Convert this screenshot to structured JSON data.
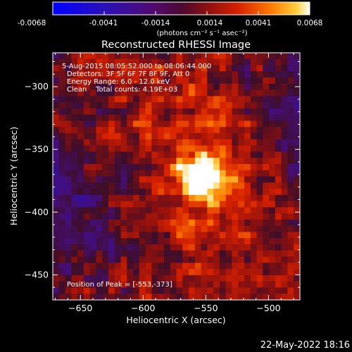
{
  "colorbar": {
    "ticks": [
      "-0.0068",
      "-0.0041",
      "-0.0014",
      "0.0014",
      "0.0041",
      "0.0068"
    ],
    "units": "(photons cm⁻² s⁻¹ asec⁻²)"
  },
  "title": "Reconstructed RHESSI Image",
  "info": {
    "time": "5-Aug-2015 08:05:52.000 to 08:06:44.000",
    "detectors": "Detectors: 3F 5F 6F 7F 8F 9F, Att 0",
    "energy": "Energy Range: 6.0 - 12.0 keV",
    "clean": "Clean    Total counts: 4.19E+03"
  },
  "peak_label": "Position of Peak = [-553,-373]",
  "footer_date": "22-May-2022 18:16",
  "chart_data": {
    "type": "heatmap",
    "title": "Reconstructed RHESSI Image",
    "xlabel": "Heliocentric X (arcsec)",
    "ylabel": "Heliocentric Y (arcsec)",
    "xlim": [
      -672,
      -475
    ],
    "ylim": [
      -470,
      -273
    ],
    "xticks": [
      -650,
      -600,
      -550,
      -500
    ],
    "yticks": [
      -300,
      -350,
      -400,
      -450
    ],
    "xtick_labels": [
      "−650",
      "−600",
      "−550",
      "−500"
    ],
    "ytick_labels": [
      "−300",
      "−350",
      "−400",
      "−450"
    ],
    "colorscale": "red-temperature",
    "zlim": [
      -0.0068,
      0.0068
    ],
    "peak": {
      "x": -553,
      "y": -373
    },
    "source_sigma_arcsec": 13,
    "source_peak_value": 0.0068,
    "background_value": 0.001
  }
}
